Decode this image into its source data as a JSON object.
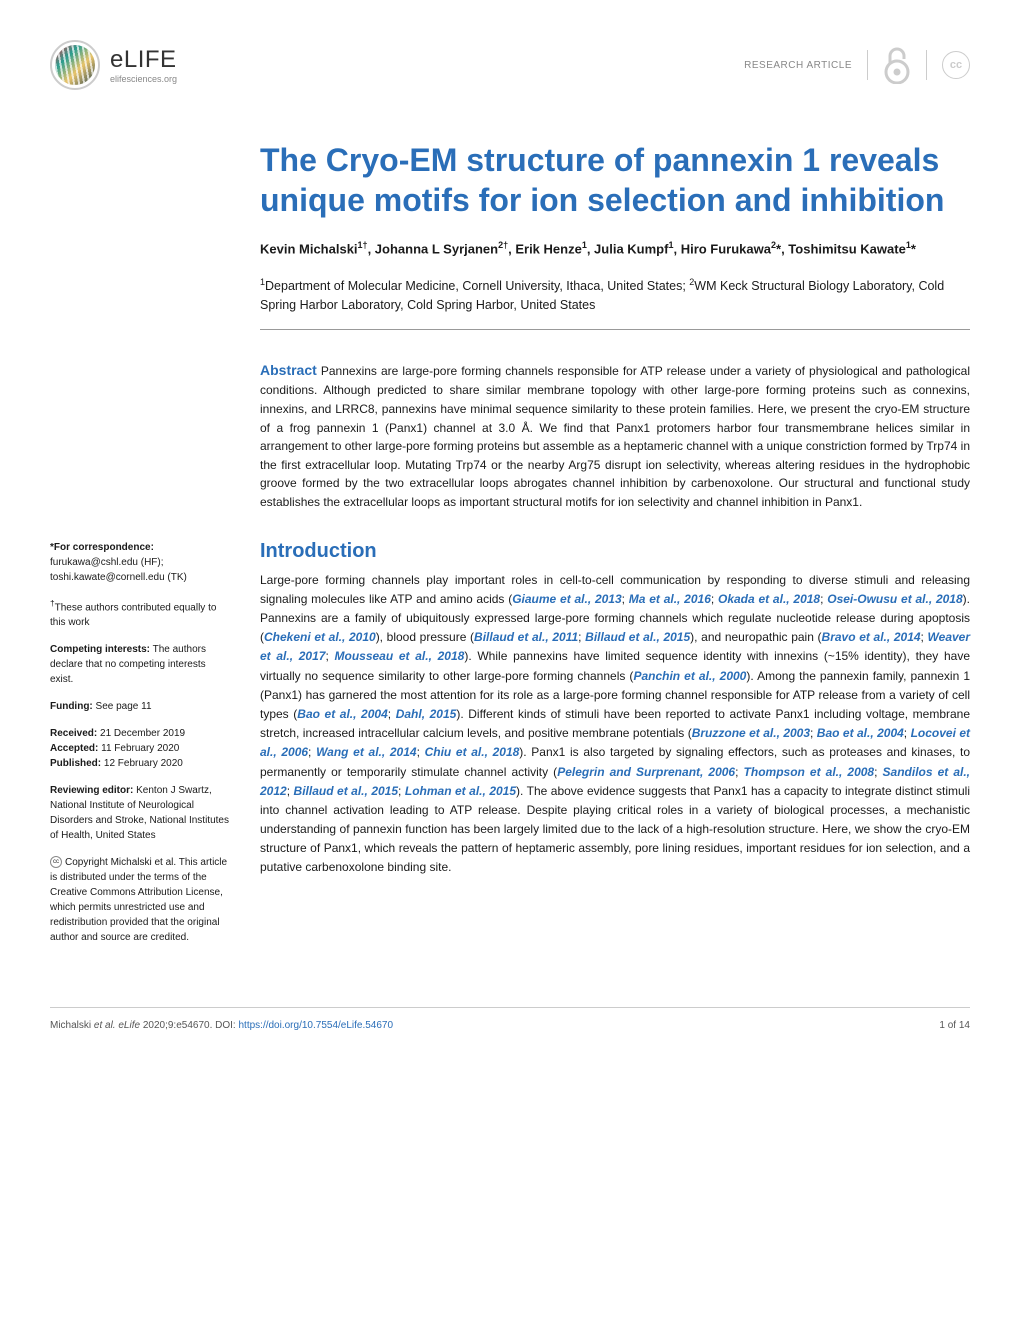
{
  "journal": {
    "name": "eLIFE",
    "url": "elifesciences.org",
    "articleType": "RESEARCH ARTICLE"
  },
  "article": {
    "title": "The Cryo-EM structure of pannexin 1 reveals unique motifs for ion selection and inhibition",
    "authors": "Kevin Michalski<sup>1†</sup>, Johanna L Syrjanen<sup>2†</sup>, Erik Henze<sup>1</sup>, Julia Kumpf<sup>1</sup>, Hiro Furukawa<sup>2</sup>*, Toshimitsu Kawate<sup>1</sup>*",
    "affiliations": "<sup>1</sup>Department of Molecular Medicine, Cornell University, Ithaca, United States; <sup>2</sup>WM Keck Structural Biology Laboratory, Cold Spring Harbor Laboratory, Cold Spring Harbor, United States"
  },
  "abstract": {
    "label": "Abstract",
    "text": " Pannexins are large-pore forming channels responsible for ATP release under a variety of physiological and pathological conditions. Although predicted to share similar membrane topology with other large-pore forming proteins such as connexins, innexins, and LRRC8, pannexins have minimal sequence similarity to these protein families. Here, we present the cryo-EM structure of a frog pannexin 1 (Panx1) channel at 3.0 Å. We find that Panx1 protomers harbor four transmembrane helices similar in arrangement to other large-pore forming proteins but assemble as a heptameric channel with a unique constriction formed by Trp74 in the first extracellular loop. Mutating Trp74 or the nearby Arg75 disrupt ion selectivity, whereas altering residues in the hydrophobic groove formed by the two extracellular loops abrogates channel inhibition by carbenoxolone. Our structural and functional study establishes the extracellular loops as important structural motifs for ion selectivity and channel inhibition in Panx1."
  },
  "introduction": {
    "heading": "Introduction",
    "body": "Large-pore forming channels play important roles in cell-to-cell communication by responding to diverse stimuli and releasing signaling molecules like ATP and amino acids (<span class='ref'>Giaume et al., 2013</span>; <span class='ref'>Ma et al., 2016</span>; <span class='ref'>Okada et al., 2018</span>; <span class='ref'>Osei-Owusu et al., 2018</span>). Pannexins are a family of ubiquitously expressed large-pore forming channels which regulate nucleotide release during apoptosis (<span class='ref'>Chekeni et al., 2010</span>), blood pressure (<span class='ref'>Billaud et al., 2011</span>; <span class='ref'>Billaud et al., 2015</span>), and neuropathic pain (<span class='ref'>Bravo et al., 2014</span>; <span class='ref'>Weaver et al., 2017</span>; <span class='ref'>Mousseau et al., 2018</span>). While pannexins have limited sequence identity with innexins (~15% identity), they have virtually no sequence similarity to other large-pore forming channels (<span class='ref'>Panchin et al., 2000</span>). Among the pannexin family, pannexin 1 (Panx1) has garnered the most attention for its role as a large-pore forming channel responsible for ATP release from a variety of cell types (<span class='ref'>Bao et al., 2004</span>; <span class='ref'>Dahl, 2015</span>). Different kinds of stimuli have been reported to activate Panx1 including voltage, membrane stretch, increased intracellular calcium levels, and positive membrane potentials (<span class='ref'>Bruzzone et al., 2003</span>; <span class='ref'>Bao et al., 2004</span>; <span class='ref'>Locovei et al., 2006</span>; <span class='ref'>Wang et al., 2014</span>; <span class='ref'>Chiu et al., 2018</span>). Panx1 is also targeted by signaling effectors, such as proteases and kinases, to permanently or temporarily stimulate channel activity (<span class='ref'>Pelegrin and Surprenant, 2006</span>; <span class='ref'>Thompson et al., 2008</span>; <span class='ref'>Sandilos et al., 2012</span>; <span class='ref'>Billaud et al., 2015</span>; <span class='ref'>Lohman et al., 2015</span>). The above evidence suggests that Panx1 has a capacity to integrate distinct stimuli into channel activation leading to ATP release. Despite playing critical roles in a variety of biological processes, a mechanistic understanding of pannexin function has been largely limited due to the lack of a high-resolution structure. Here, we show the cryo-EM structure of Panx1, which reveals the pattern of heptameric assembly, pore lining residues, important residues for ion selection, and a putative carbenoxolone binding site."
  },
  "meta": {
    "correspondenceLabel": "*For correspondence:",
    "correspondence1": "furukawa@cshl.edu (HF);",
    "correspondence2": "toshi.kawate@cornell.edu (TK)",
    "equalContrib": "<sup>†</sup>These authors contributed equally to this work",
    "competingLabel": "Competing interests:",
    "competingText": " The authors declare that no competing interests exist.",
    "fundingLabel": "Funding:",
    "fundingText": " See page 11",
    "receivedLabel": "Received:",
    "receivedDate": " 21 December 2019",
    "acceptedLabel": "Accepted:",
    "acceptedDate": " 11 February 2020",
    "publishedLabel": "Published:",
    "publishedDate": " 12 February 2020",
    "reviewingLabel": "Reviewing editor:",
    "reviewingText": " Kenton J Swartz, National Institute of Neurological Disorders and Stroke, National Institutes of Health, United States",
    "copyrightText": "Copyright Michalski et al. This article is distributed under the terms of the <span class='link'>Creative Commons Attribution License,</span> which permits unrestricted use and redistribution provided that the original author and source are credited."
  },
  "footer": {
    "citation": "Michalski <i>et al. eLife</i> 2020;9:e54670. ",
    "doiLabel": "DOI: ",
    "doiUrl": "https://doi.org/10.7554/eLife.54670",
    "pageNum": "1 of 14"
  },
  "colors": {
    "primary": "#2a6eb8",
    "text": "#1a1a1a",
    "muted": "#888"
  }
}
